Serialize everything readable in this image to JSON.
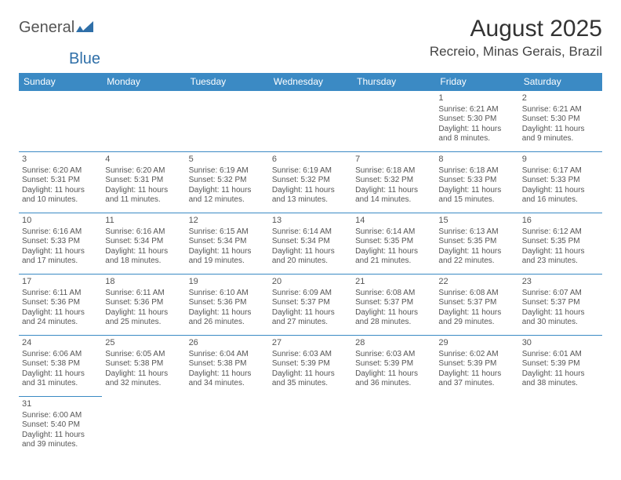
{
  "logo": {
    "text1": "General",
    "text2": "Blue"
  },
  "title": "August 2025",
  "location": "Recreio, Minas Gerais, Brazil",
  "colors": {
    "header_bg": "#3b8ac4",
    "header_fg": "#ffffff",
    "border": "#3b8ac4",
    "text": "#555555"
  },
  "weekdays": [
    "Sunday",
    "Monday",
    "Tuesday",
    "Wednesday",
    "Thursday",
    "Friday",
    "Saturday"
  ],
  "weeks": [
    [
      null,
      null,
      null,
      null,
      null,
      {
        "n": "1",
        "sr": "Sunrise: 6:21 AM",
        "ss": "Sunset: 5:30 PM",
        "dl1": "Daylight: 11 hours",
        "dl2": "and 8 minutes."
      },
      {
        "n": "2",
        "sr": "Sunrise: 6:21 AM",
        "ss": "Sunset: 5:30 PM",
        "dl1": "Daylight: 11 hours",
        "dl2": "and 9 minutes."
      }
    ],
    [
      {
        "n": "3",
        "sr": "Sunrise: 6:20 AM",
        "ss": "Sunset: 5:31 PM",
        "dl1": "Daylight: 11 hours",
        "dl2": "and 10 minutes."
      },
      {
        "n": "4",
        "sr": "Sunrise: 6:20 AM",
        "ss": "Sunset: 5:31 PM",
        "dl1": "Daylight: 11 hours",
        "dl2": "and 11 minutes."
      },
      {
        "n": "5",
        "sr": "Sunrise: 6:19 AM",
        "ss": "Sunset: 5:32 PM",
        "dl1": "Daylight: 11 hours",
        "dl2": "and 12 minutes."
      },
      {
        "n": "6",
        "sr": "Sunrise: 6:19 AM",
        "ss": "Sunset: 5:32 PM",
        "dl1": "Daylight: 11 hours",
        "dl2": "and 13 minutes."
      },
      {
        "n": "7",
        "sr": "Sunrise: 6:18 AM",
        "ss": "Sunset: 5:32 PM",
        "dl1": "Daylight: 11 hours",
        "dl2": "and 14 minutes."
      },
      {
        "n": "8",
        "sr": "Sunrise: 6:18 AM",
        "ss": "Sunset: 5:33 PM",
        "dl1": "Daylight: 11 hours",
        "dl2": "and 15 minutes."
      },
      {
        "n": "9",
        "sr": "Sunrise: 6:17 AM",
        "ss": "Sunset: 5:33 PM",
        "dl1": "Daylight: 11 hours",
        "dl2": "and 16 minutes."
      }
    ],
    [
      {
        "n": "10",
        "sr": "Sunrise: 6:16 AM",
        "ss": "Sunset: 5:33 PM",
        "dl1": "Daylight: 11 hours",
        "dl2": "and 17 minutes."
      },
      {
        "n": "11",
        "sr": "Sunrise: 6:16 AM",
        "ss": "Sunset: 5:34 PM",
        "dl1": "Daylight: 11 hours",
        "dl2": "and 18 minutes."
      },
      {
        "n": "12",
        "sr": "Sunrise: 6:15 AM",
        "ss": "Sunset: 5:34 PM",
        "dl1": "Daylight: 11 hours",
        "dl2": "and 19 minutes."
      },
      {
        "n": "13",
        "sr": "Sunrise: 6:14 AM",
        "ss": "Sunset: 5:34 PM",
        "dl1": "Daylight: 11 hours",
        "dl2": "and 20 minutes."
      },
      {
        "n": "14",
        "sr": "Sunrise: 6:14 AM",
        "ss": "Sunset: 5:35 PM",
        "dl1": "Daylight: 11 hours",
        "dl2": "and 21 minutes."
      },
      {
        "n": "15",
        "sr": "Sunrise: 6:13 AM",
        "ss": "Sunset: 5:35 PM",
        "dl1": "Daylight: 11 hours",
        "dl2": "and 22 minutes."
      },
      {
        "n": "16",
        "sr": "Sunrise: 6:12 AM",
        "ss": "Sunset: 5:35 PM",
        "dl1": "Daylight: 11 hours",
        "dl2": "and 23 minutes."
      }
    ],
    [
      {
        "n": "17",
        "sr": "Sunrise: 6:11 AM",
        "ss": "Sunset: 5:36 PM",
        "dl1": "Daylight: 11 hours",
        "dl2": "and 24 minutes."
      },
      {
        "n": "18",
        "sr": "Sunrise: 6:11 AM",
        "ss": "Sunset: 5:36 PM",
        "dl1": "Daylight: 11 hours",
        "dl2": "and 25 minutes."
      },
      {
        "n": "19",
        "sr": "Sunrise: 6:10 AM",
        "ss": "Sunset: 5:36 PM",
        "dl1": "Daylight: 11 hours",
        "dl2": "and 26 minutes."
      },
      {
        "n": "20",
        "sr": "Sunrise: 6:09 AM",
        "ss": "Sunset: 5:37 PM",
        "dl1": "Daylight: 11 hours",
        "dl2": "and 27 minutes."
      },
      {
        "n": "21",
        "sr": "Sunrise: 6:08 AM",
        "ss": "Sunset: 5:37 PM",
        "dl1": "Daylight: 11 hours",
        "dl2": "and 28 minutes."
      },
      {
        "n": "22",
        "sr": "Sunrise: 6:08 AM",
        "ss": "Sunset: 5:37 PM",
        "dl1": "Daylight: 11 hours",
        "dl2": "and 29 minutes."
      },
      {
        "n": "23",
        "sr": "Sunrise: 6:07 AM",
        "ss": "Sunset: 5:37 PM",
        "dl1": "Daylight: 11 hours",
        "dl2": "and 30 minutes."
      }
    ],
    [
      {
        "n": "24",
        "sr": "Sunrise: 6:06 AM",
        "ss": "Sunset: 5:38 PM",
        "dl1": "Daylight: 11 hours",
        "dl2": "and 31 minutes."
      },
      {
        "n": "25",
        "sr": "Sunrise: 6:05 AM",
        "ss": "Sunset: 5:38 PM",
        "dl1": "Daylight: 11 hours",
        "dl2": "and 32 minutes."
      },
      {
        "n": "26",
        "sr": "Sunrise: 6:04 AM",
        "ss": "Sunset: 5:38 PM",
        "dl1": "Daylight: 11 hours",
        "dl2": "and 34 minutes."
      },
      {
        "n": "27",
        "sr": "Sunrise: 6:03 AM",
        "ss": "Sunset: 5:39 PM",
        "dl1": "Daylight: 11 hours",
        "dl2": "and 35 minutes."
      },
      {
        "n": "28",
        "sr": "Sunrise: 6:03 AM",
        "ss": "Sunset: 5:39 PM",
        "dl1": "Daylight: 11 hours",
        "dl2": "and 36 minutes."
      },
      {
        "n": "29",
        "sr": "Sunrise: 6:02 AM",
        "ss": "Sunset: 5:39 PM",
        "dl1": "Daylight: 11 hours",
        "dl2": "and 37 minutes."
      },
      {
        "n": "30",
        "sr": "Sunrise: 6:01 AM",
        "ss": "Sunset: 5:39 PM",
        "dl1": "Daylight: 11 hours",
        "dl2": "and 38 minutes."
      }
    ],
    [
      {
        "n": "31",
        "sr": "Sunrise: 6:00 AM",
        "ss": "Sunset: 5:40 PM",
        "dl1": "Daylight: 11 hours",
        "dl2": "and 39 minutes."
      },
      null,
      null,
      null,
      null,
      null,
      null
    ]
  ]
}
